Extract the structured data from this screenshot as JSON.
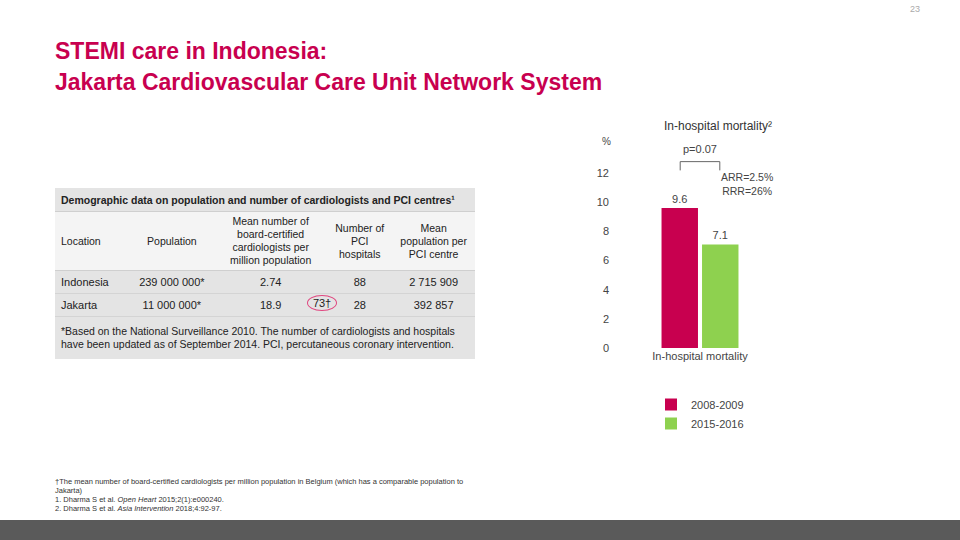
{
  "page_number": "23",
  "title_lines": [
    "STEMI care in Indonesia:",
    "Jakarta Cardiovascular Care Unit Network System"
  ],
  "table": {
    "caption": "Demographic data on population and number of cardiologists and PCI centres¹",
    "header": [
      "Location",
      "Population",
      "Mean number of board-certified cardiologists per million population",
      "Number of PCI hospitals",
      "Mean population per PCI centre"
    ],
    "rows": [
      [
        "Indonesia",
        "239 000 000*",
        "2.74",
        "88",
        "2 715 909"
      ],
      [
        "Jakarta",
        "11 000 000*",
        {
          "text": "18.9",
          "callout": "73†"
        },
        "28",
        "392 857"
      ]
    ],
    "note": "*Based on the National Surveillance 2010. The number of cardiologists and hospitals have been updated as of September 2014. PCI, percutaneous coronary intervention."
  },
  "footnotes": [
    {
      "text": "†The mean number of board-certified cardiologists per million population in Belgium (which has a comparable population to Jakarta)"
    },
    {
      "text": "1. Dharma S et al. ",
      "journal": "Open Heart",
      "rest": " 2015;2(1):e000240."
    },
    {
      "text": "2. Dharma S et al. ",
      "journal": "Asia Intervention",
      "rest": " 2018;4:92-97."
    }
  ],
  "chart_data": {
    "type": "bar",
    "title": "In-hospital mortality²",
    "y_label": "%",
    "categories": [
      "In-hospital mortality"
    ],
    "series": [
      {
        "name": "2008-2009",
        "color": "#c8004f",
        "values": [
          9.6
        ]
      },
      {
        "name": "2015-2016",
        "color": "#8ed14f",
        "values": [
          7.1
        ]
      }
    ],
    "ylim": [
      0,
      12
    ],
    "yticks": [
      0,
      2,
      4,
      6,
      8,
      10,
      12
    ],
    "grid": false,
    "data_labels": true,
    "legend": "bottom",
    "annotations": {
      "p_value": "p=0.07",
      "arr": "ARR=2.5%",
      "rrr": "RRR=26%"
    }
  }
}
